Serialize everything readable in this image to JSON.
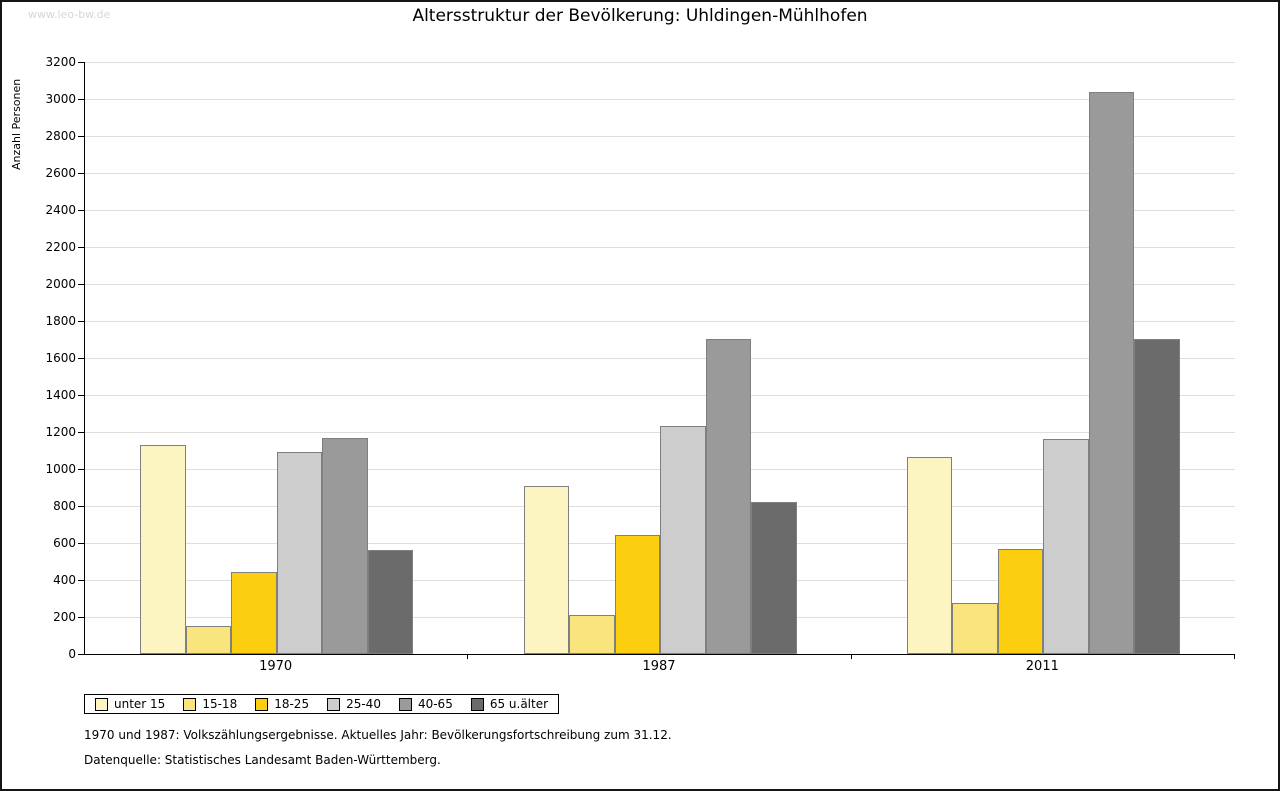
{
  "page": {
    "watermark": "www.leo-bw.de",
    "footnote1": "1970 und 1987: Volkszählungsergebnisse. Aktuelles Jahr: Bevölkerungsfortschreibung zum 31.12.",
    "footnote2": "Datenquelle: Statistisches Landesamt Baden-Württemberg."
  },
  "chart_data": {
    "type": "bar",
    "title": "Altersstruktur der Bevölkerung: Uhldingen-Mühlhofen",
    "xlabel": "",
    "ylabel": "Anzahl Personen",
    "ylim": [
      0,
      3200
    ],
    "ytick_step": 200,
    "grid": true,
    "legend_position": "bottom-left",
    "categories": [
      "1970",
      "1987",
      "2011"
    ],
    "series": [
      {
        "name": "unter 15",
        "color": "#FCF4C1",
        "values": [
          1130,
          910,
          1065
        ]
      },
      {
        "name": "15-18",
        "color": "#F9E47E",
        "values": [
          150,
          210,
          275
        ]
      },
      {
        "name": "18-25",
        "color": "#FBCE10",
        "values": [
          445,
          645,
          570
        ]
      },
      {
        "name": "25-40",
        "color": "#CDCDCD",
        "values": [
          1090,
          1230,
          1160
        ]
      },
      {
        "name": "40-65",
        "color": "#9A9A9A",
        "values": [
          1170,
          1700,
          3040
        ]
      },
      {
        "name": "65 u.älter",
        "color": "#6B6B6B",
        "values": [
          560,
          820,
          1700
        ]
      }
    ]
  }
}
